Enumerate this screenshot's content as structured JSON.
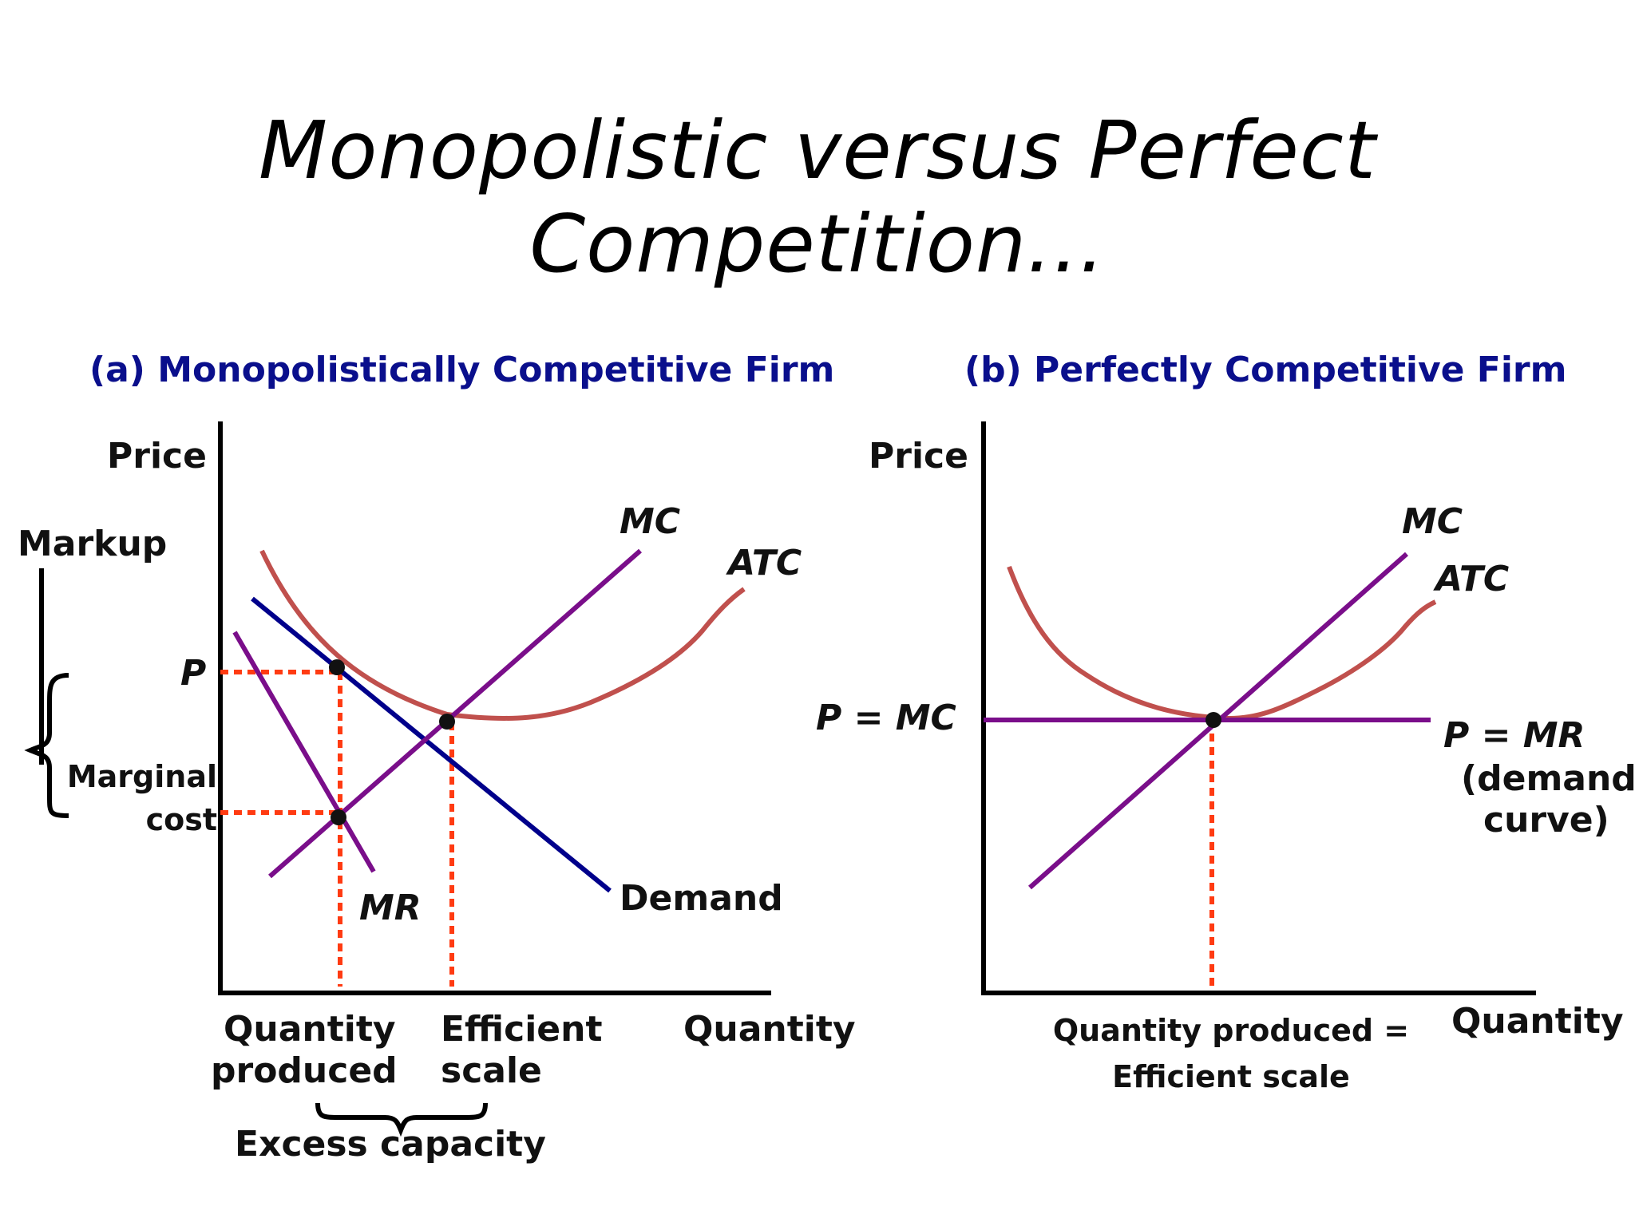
{
  "title": "Monopolistic versus Perfect Competition...",
  "colors": {
    "title_blue": "#0a0f8c",
    "mc_purple": "#7a0e8a",
    "atc_red": "#c0504d",
    "demand_blue": "#00008b",
    "guide_orange": "#ff3b12",
    "axis_black": "#000000"
  },
  "panel_a": {
    "title": "(a) Monopolistically Competitive Firm",
    "y_axis_label": "Price",
    "x_axis_label": "Quantity",
    "curves": {
      "mc": "MC",
      "atc": "ATC",
      "demand": "Demand",
      "mr": "MR"
    },
    "price_label": "P",
    "markup_label": "Markup",
    "marginal_cost_label_line1": "Marginal",
    "marginal_cost_label_line2": "cost",
    "qty_produced_line1": "Quantity",
    "qty_produced_line2": "produced",
    "efficient_scale_line1": "Efficient",
    "efficient_scale_line2": "scale",
    "excess_capacity_label": "Excess capacity"
  },
  "panel_b": {
    "title": "(b) Perfectly Competitive Firm",
    "y_axis_label": "Price",
    "x_axis_label": "Quantity",
    "curves": {
      "mc": "MC",
      "atc": "ATC"
    },
    "p_eq_mc_label": "P = MC",
    "p_eq_mr_label": "P = MR",
    "demand_note_line1": "(demand",
    "demand_note_line2": "curve)",
    "qty_line1": "Quantity produced =",
    "qty_line2": "Efficient scale"
  }
}
